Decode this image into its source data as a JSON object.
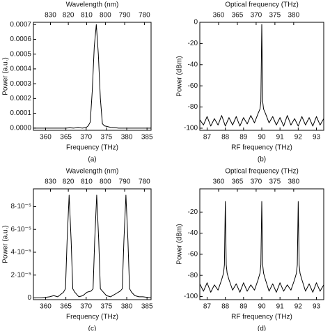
{
  "chart_data": [
    {
      "type": "line",
      "caption": "(a)",
      "xlabel": "Frequency (THz)",
      "ylabel": "Power (a.u.)",
      "x2label": "Wavelength (nm)",
      "x2scale": "wavelength",
      "color": "#000000",
      "xlim": [
        357,
        386
      ],
      "xticks": [
        360,
        365,
        370,
        375,
        380,
        385
      ],
      "ylim": [
        -1.5e-05,
        0.000715
      ],
      "yticks": [
        {
          "value": 0,
          "label": "0.0000"
        },
        {
          "value": 0.0001,
          "label": "0.0001"
        },
        {
          "value": 0.0002,
          "label": "0.0002"
        },
        {
          "value": 0.0003,
          "label": "0.0003"
        },
        {
          "value": 0.0004,
          "label": "0.0004"
        },
        {
          "value": 0.0005,
          "label": "0.0005"
        },
        {
          "value": 0.0006,
          "label": "0.0006"
        },
        {
          "value": 0.0007,
          "label": "0.0007"
        }
      ],
      "x2ticks": [
        830,
        820,
        810,
        800,
        790,
        780
      ],
      "x": [
        357,
        360,
        362,
        364,
        365,
        366,
        367,
        368,
        369,
        370,
        370.5,
        371,
        371.5,
        372,
        372.5,
        373,
        373.5,
        374,
        374.5,
        375,
        376,
        377,
        378,
        380,
        383,
        386
      ],
      "values": [
        0,
        0,
        0,
        0,
        0,
        2e-06,
        0,
        5e-06,
        0,
        4e-06,
        1.5e-05,
        4e-05,
        0.00025,
        0.00055,
        0.0007,
        0.0005,
        0.0002,
        3e-05,
        1.5e-05,
        1.2e-05,
        5e-06,
        3e-06,
        0,
        0,
        0,
        0
      ]
    },
    {
      "type": "line",
      "caption": "(b)",
      "xlabel": "RF frequency (THz)",
      "ylabel": "Power (dBm)",
      "x2label": "Optical frequency (THz)",
      "x2scale": "linear",
      "color": "#000000",
      "xlim": [
        86.6,
        93.4
      ],
      "xticks": [
        87,
        88,
        89,
        90,
        91,
        92,
        93
      ],
      "ylim": [
        -102,
        0
      ],
      "yticks": [
        0,
        -20,
        -40,
        -60,
        -80,
        -100
      ],
      "x2lim": [
        355,
        388
      ],
      "x2ticks": [
        360,
        365,
        370,
        375,
        380
      ],
      "x": [
        86.6,
        86.8,
        87,
        87.2,
        87.4,
        87.6,
        87.8,
        88,
        88.2,
        88.4,
        88.6,
        88.8,
        89,
        89.2,
        89.4,
        89.6,
        89.8,
        89.9,
        89.95,
        90,
        90.05,
        90.1,
        90.2,
        90.4,
        90.6,
        90.8,
        91,
        91.2,
        91.4,
        91.6,
        91.8,
        92,
        92.2,
        92.4,
        92.6,
        92.8,
        93,
        93.2,
        93.4
      ],
      "values": [
        -92,
        -97,
        -89,
        -98,
        -91,
        -97,
        -88,
        -98,
        -90,
        -97,
        -89,
        -98,
        -90,
        -96,
        -88,
        -95,
        -86,
        -82,
        -75,
        -2,
        -75,
        -82,
        -86,
        -95,
        -89,
        -97,
        -90,
        -98,
        -88,
        -97,
        -91,
        -98,
        -89,
        -97,
        -90,
        -98,
        -89,
        -97,
        -91
      ]
    },
    {
      "type": "line",
      "caption": "(c)",
      "xlabel": "Frequency (THz)",
      "ylabel": "Power (a.u.)",
      "x2label": "Wavelength (nm)",
      "x2scale": "wavelength",
      "color": "#000000",
      "xlim": [
        357,
        386
      ],
      "xticks": [
        360,
        365,
        370,
        375,
        380,
        385
      ],
      "ylim": [
        -1.5e-06,
        9.55e-05
      ],
      "yticks": [
        0,
        {
          "value": 2e-05,
          "label": "2·10⁻⁵"
        },
        {
          "value": 4e-05,
          "label": "4·10⁻⁵"
        },
        {
          "value": 6e-05,
          "label": "6·10⁻⁵"
        },
        {
          "value": 8e-05,
          "label": "8·10⁻⁵"
        }
      ],
      "x2ticks": [
        830,
        820,
        810,
        800,
        790,
        780
      ],
      "x": [
        357,
        359,
        361,
        362,
        363,
        364.4,
        364.9,
        365.3,
        365.8,
        366.3,
        366.7,
        367.2,
        368.2,
        369.2,
        370.2,
        371.2,
        371.7,
        372.1,
        372.6,
        373.1,
        373.5,
        374,
        375,
        376,
        377,
        378.4,
        378.9,
        379.3,
        379.8,
        380.3,
        380.7,
        381.2,
        382,
        383,
        384,
        386
      ],
      "values": [
        0,
        0,
        1e-06,
        2e-06,
        1e-06,
        5e-06,
        8e-06,
        5e-05,
        9e-05,
        5e-05,
        8e-06,
        5e-06,
        1e-06,
        2e-06,
        5e-06,
        6e-06,
        8e-06,
        5e-05,
        9e-05,
        5e-05,
        8e-06,
        6e-06,
        2e-06,
        1e-06,
        3e-06,
        6e-06,
        8e-06,
        5e-05,
        9e-05,
        5e-05,
        8e-06,
        5e-06,
        2e-06,
        1e-06,
        1e-06,
        0
      ]
    },
    {
      "type": "line",
      "caption": "(d)",
      "xlabel": "RF frequency (THz)",
      "ylabel": "Power (dBm)",
      "x2label": "Optical frequency (THz)",
      "x2scale": "linear",
      "color": "#000000",
      "xlim": [
        86.6,
        93.4
      ],
      "xticks": [
        87,
        88,
        89,
        90,
        91,
        92,
        93
      ],
      "ylim": [
        -103,
        2
      ],
      "yticks": [
        -20,
        -40,
        -60,
        -80,
        -100
      ],
      "x2lim": [
        355,
        388
      ],
      "x2ticks": [
        360,
        365,
        370,
        375,
        380
      ],
      "x": [
        86.6,
        86.8,
        87,
        87.2,
        87.4,
        87.6,
        87.8,
        87.9,
        87.95,
        88,
        88.05,
        88.1,
        88.2,
        88.4,
        88.6,
        88.8,
        89,
        89.2,
        89.4,
        89.6,
        89.8,
        89.9,
        89.95,
        90,
        90.05,
        90.1,
        90.2,
        90.4,
        90.6,
        90.8,
        91,
        91.2,
        91.4,
        91.6,
        91.8,
        91.9,
        91.95,
        92,
        92.05,
        92.1,
        92.2,
        92.4,
        92.6,
        92.8,
        93,
        93.2,
        93.4
      ],
      "values": [
        -88,
        -95,
        -87,
        -96,
        -89,
        -94,
        -84,
        -78,
        -70,
        -10,
        -70,
        -78,
        -84,
        -94,
        -88,
        -96,
        -87,
        -95,
        -89,
        -94,
        -84,
        -78,
        -70,
        -10,
        -70,
        -78,
        -84,
        -95,
        -88,
        -96,
        -87,
        -95,
        -89,
        -94,
        -84,
        -78,
        -70,
        -10,
        -70,
        -78,
        -84,
        -95,
        -88,
        -96,
        -87,
        -95,
        -89
      ]
    }
  ]
}
